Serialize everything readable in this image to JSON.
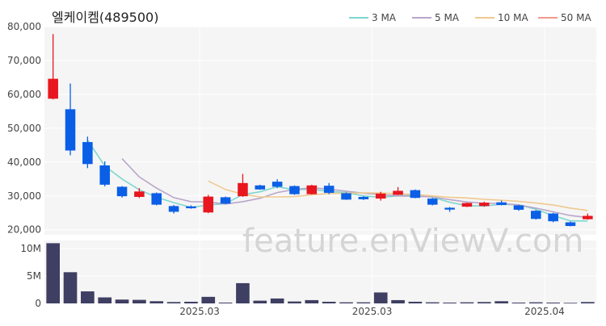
{
  "chart_data": {
    "type": "candlestick",
    "title": "엘케이켐(489500)",
    "watermark": "feature.enViewV.com",
    "legend": [
      {
        "name": "3 MA",
        "color": "#7fd6cf"
      },
      {
        "name": "5 MA",
        "color": "#b8a6c9"
      },
      {
        "name": "10 MA",
        "color": "#f0c98e"
      },
      {
        "name": "50 MA",
        "color": "#f29a8a"
      }
    ],
    "up_color": "#e8161f",
    "down_color": "#0a5fe6",
    "volume_color": "#3f3f63",
    "price_axis": {
      "min": 18500,
      "max": 80000,
      "ticks": [
        20000,
        30000,
        40000,
        50000,
        60000,
        70000,
        80000
      ],
      "tick_labels": [
        "20,000",
        "30,000",
        "40,000",
        "50,000",
        "60,000",
        "70,000",
        "80,000"
      ]
    },
    "volume_axis": {
      "min": 0,
      "max": 11500000,
      "ticks": [
        0,
        5000000,
        10000000
      ],
      "tick_labels": [
        "0",
        "5M",
        "10M"
      ]
    },
    "x_labels": [
      {
        "index": 8.5,
        "text": "2025.03"
      },
      {
        "index": 18.5,
        "text": "2025.03"
      },
      {
        "index": 28.5,
        "text": "2025.04"
      }
    ],
    "candles": [
      {
        "o": 58800,
        "h": 77800,
        "l": 58500,
        "c": 64500,
        "v": 11000000
      },
      {
        "o": 55500,
        "h": 63200,
        "l": 42000,
        "c": 43500,
        "v": 5700000
      },
      {
        "o": 45800,
        "h": 47500,
        "l": 38200,
        "c": 39500,
        "v": 2200000
      },
      {
        "o": 38900,
        "h": 40200,
        "l": 32800,
        "c": 33400,
        "v": 1100000
      },
      {
        "o": 32600,
        "h": 32900,
        "l": 29500,
        "c": 30000,
        "v": 700000
      },
      {
        "o": 29800,
        "h": 32300,
        "l": 29400,
        "c": 31200,
        "v": 650000
      },
      {
        "o": 30700,
        "h": 31000,
        "l": 27200,
        "c": 27500,
        "v": 400000
      },
      {
        "o": 26900,
        "h": 27300,
        "l": 24800,
        "c": 25400,
        "v": 250000
      },
      {
        "o": 26800,
        "h": 27200,
        "l": 26200,
        "c": 26600,
        "v": 300000
      },
      {
        "o": 25200,
        "h": 30300,
        "l": 24900,
        "c": 29700,
        "v": 1200000
      },
      {
        "o": 29500,
        "h": 29800,
        "l": 27600,
        "c": 27800,
        "v": 150000
      },
      {
        "o": 30000,
        "h": 36500,
        "l": 29700,
        "c": 33700,
        "v": 3700000
      },
      {
        "o": 33000,
        "h": 33300,
        "l": 31800,
        "c": 32000,
        "v": 500000
      },
      {
        "o": 34100,
        "h": 34900,
        "l": 32300,
        "c": 32800,
        "v": 900000
      },
      {
        "o": 32800,
        "h": 33100,
        "l": 30300,
        "c": 30600,
        "v": 350000
      },
      {
        "o": 30600,
        "h": 33300,
        "l": 30400,
        "c": 33000,
        "v": 600000
      },
      {
        "o": 32900,
        "h": 33800,
        "l": 30500,
        "c": 31000,
        "v": 300000
      },
      {
        "o": 30700,
        "h": 31000,
        "l": 28800,
        "c": 29000,
        "v": 200000
      },
      {
        "o": 29600,
        "h": 29900,
        "l": 28800,
        "c": 29100,
        "v": 200000
      },
      {
        "o": 29300,
        "h": 31200,
        "l": 28600,
        "c": 30600,
        "v": 2000000
      },
      {
        "o": 30400,
        "h": 32600,
        "l": 30200,
        "c": 31400,
        "v": 600000
      },
      {
        "o": 31600,
        "h": 31900,
        "l": 29300,
        "c": 29500,
        "v": 300000
      },
      {
        "o": 29100,
        "h": 29400,
        "l": 27200,
        "c": 27500,
        "v": 200000
      },
      {
        "o": 26400,
        "h": 26700,
        "l": 25300,
        "c": 26100,
        "v": 150000
      },
      {
        "o": 26900,
        "h": 28000,
        "l": 26700,
        "c": 27800,
        "v": 200000
      },
      {
        "o": 27100,
        "h": 28300,
        "l": 26800,
        "c": 27900,
        "v": 250000
      },
      {
        "o": 28000,
        "h": 28600,
        "l": 27200,
        "c": 27400,
        "v": 400000
      },
      {
        "o": 27100,
        "h": 27300,
        "l": 25600,
        "c": 26000,
        "v": 150000
      },
      {
        "o": 25500,
        "h": 25800,
        "l": 23000,
        "c": 23300,
        "v": 200000
      },
      {
        "o": 24700,
        "h": 25000,
        "l": 22200,
        "c": 22600,
        "v": 150000
      },
      {
        "o": 22100,
        "h": 22400,
        "l": 21000,
        "c": 21200,
        "v": 100000
      },
      {
        "o": 23200,
        "h": 24800,
        "l": 23000,
        "c": 24000,
        "v": 250000
      }
    ],
    "ma": {
      "ma3": [
        null,
        null,
        46500,
        38800,
        35000,
        31800,
        29600,
        28000,
        26600,
        27300,
        27700,
        30400,
        31200,
        32700,
        31800,
        32000,
        31300,
        31000,
        30000,
        29600,
        30000,
        30300,
        29600,
        28100,
        27100,
        27000,
        27500,
        27400,
        26000,
        24200,
        22600,
        22600
      ],
      "ma5": [
        null,
        null,
        null,
        null,
        41000,
        35600,
        32300,
        29500,
        28300,
        28200,
        27600,
        28300,
        29300,
        31000,
        31900,
        32400,
        32000,
        31400,
        30800,
        30400,
        30000,
        29900,
        29700,
        28900,
        28200,
        27800,
        27800,
        27300,
        26400,
        25300,
        24200,
        23600
      ],
      "ma10": [
        null,
        null,
        null,
        null,
        null,
        null,
        null,
        null,
        null,
        34400,
        31900,
        30500,
        29700,
        29700,
        29800,
        30300,
        30700,
        30800,
        30900,
        30900,
        30600,
        30400,
        30000,
        29600,
        29400,
        29000,
        28700,
        28400,
        27900,
        27300,
        26400,
        25700
      ],
      "ma50": []
    }
  }
}
